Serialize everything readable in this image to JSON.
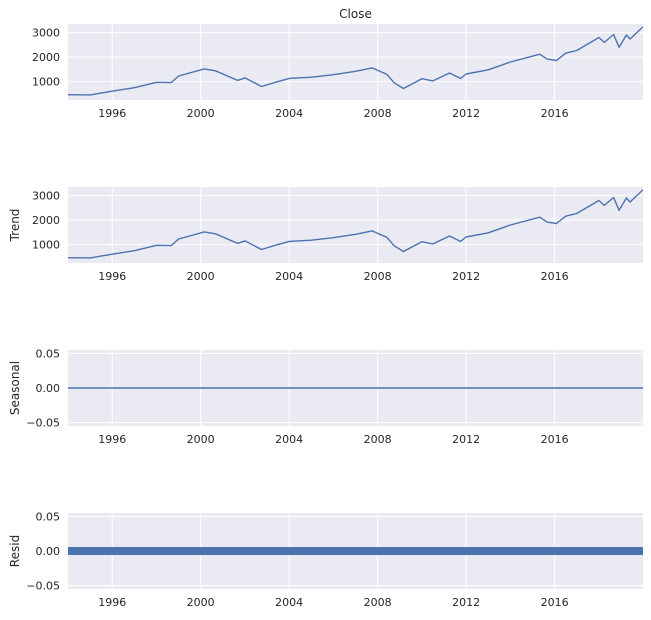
{
  "chart_data": [
    {
      "type": "line",
      "title": "Close",
      "ylabel": "",
      "xlabel": "",
      "x_range": [
        "1994-01-01",
        "2019-12-31"
      ],
      "ylim": [
        250,
        3350
      ],
      "yticks": [
        1000,
        2000,
        3000
      ],
      "ytick_labels": [
        "1000",
        "2000",
        "3000"
      ],
      "xticks": [
        "1996-01-01",
        "2000-01-01",
        "2004-01-01",
        "2008-01-01",
        "2012-01-01",
        "2016-01-01"
      ],
      "xtick_labels": [
        "1996",
        "2000",
        "2004",
        "2008",
        "2012",
        "2016"
      ],
      "grid": true,
      "line_color": "#4c72b0",
      "points": [
        [
          "1994-01-01",
          466
        ],
        [
          "1995-01-01",
          460
        ],
        [
          "1996-01-01",
          610
        ],
        [
          "1997-01-01",
          750
        ],
        [
          "1998-01-01",
          970
        ],
        [
          "1998-09-01",
          960
        ],
        [
          "1999-01-01",
          1230
        ],
        [
          "2000-03-01",
          1520
        ],
        [
          "2000-09-01",
          1440
        ],
        [
          "2001-09-01",
          1050
        ],
        [
          "2002-01-01",
          1150
        ],
        [
          "2002-10-01",
          800
        ],
        [
          "2003-06-01",
          980
        ],
        [
          "2004-01-01",
          1130
        ],
        [
          "2005-01-01",
          1180
        ],
        [
          "2006-01-01",
          1280
        ],
        [
          "2007-01-01",
          1420
        ],
        [
          "2007-10-01",
          1560
        ],
        [
          "2008-06-01",
          1300
        ],
        [
          "2008-10-01",
          950
        ],
        [
          "2009-03-01",
          720
        ],
        [
          "2010-01-01",
          1120
        ],
        [
          "2010-07-01",
          1030
        ],
        [
          "2011-04-01",
          1350
        ],
        [
          "2011-10-01",
          1130
        ],
        [
          "2012-01-01",
          1310
        ],
        [
          "2013-01-01",
          1480
        ],
        [
          "2014-01-01",
          1800
        ],
        [
          "2015-05-01",
          2120
        ],
        [
          "2015-09-01",
          1920
        ],
        [
          "2016-02-01",
          1860
        ],
        [
          "2016-07-01",
          2160
        ],
        [
          "2017-01-01",
          2270
        ],
        [
          "2018-01-01",
          2800
        ],
        [
          "2018-04-01",
          2600
        ],
        [
          "2018-09-01",
          2920
        ],
        [
          "2018-12-01",
          2400
        ],
        [
          "2019-04-01",
          2900
        ],
        [
          "2019-06-01",
          2740
        ],
        [
          "2019-12-31",
          3240
        ]
      ]
    },
    {
      "type": "line",
      "title": "",
      "ylabel": "Trend",
      "xlabel": "",
      "x_range": [
        "1994-01-01",
        "2019-12-31"
      ],
      "ylim": [
        250,
        3350
      ],
      "yticks": [
        1000,
        2000,
        3000
      ],
      "ytick_labels": [
        "1000",
        "2000",
        "3000"
      ],
      "xticks": [
        "1996-01-01",
        "2000-01-01",
        "2004-01-01",
        "2008-01-01",
        "2012-01-01",
        "2016-01-01"
      ],
      "xtick_labels": [
        "1996",
        "2000",
        "2004",
        "2008",
        "2012",
        "2016"
      ],
      "grid": true,
      "line_color": "#4c72b0",
      "points": [
        [
          "1994-01-01",
          466
        ],
        [
          "1995-01-01",
          460
        ],
        [
          "1996-01-01",
          610
        ],
        [
          "1997-01-01",
          750
        ],
        [
          "1998-01-01",
          970
        ],
        [
          "1998-09-01",
          960
        ],
        [
          "1999-01-01",
          1230
        ],
        [
          "2000-03-01",
          1520
        ],
        [
          "2000-09-01",
          1440
        ],
        [
          "2001-09-01",
          1050
        ],
        [
          "2002-01-01",
          1150
        ],
        [
          "2002-10-01",
          800
        ],
        [
          "2003-06-01",
          980
        ],
        [
          "2004-01-01",
          1130
        ],
        [
          "2005-01-01",
          1180
        ],
        [
          "2006-01-01",
          1280
        ],
        [
          "2007-01-01",
          1420
        ],
        [
          "2007-10-01",
          1560
        ],
        [
          "2008-06-01",
          1300
        ],
        [
          "2008-10-01",
          950
        ],
        [
          "2009-03-01",
          720
        ],
        [
          "2010-01-01",
          1120
        ],
        [
          "2010-07-01",
          1030
        ],
        [
          "2011-04-01",
          1350
        ],
        [
          "2011-10-01",
          1130
        ],
        [
          "2012-01-01",
          1310
        ],
        [
          "2013-01-01",
          1480
        ],
        [
          "2014-01-01",
          1800
        ],
        [
          "2015-05-01",
          2120
        ],
        [
          "2015-09-01",
          1920
        ],
        [
          "2016-02-01",
          1860
        ],
        [
          "2016-07-01",
          2160
        ],
        [
          "2017-01-01",
          2270
        ],
        [
          "2018-01-01",
          2800
        ],
        [
          "2018-04-01",
          2600
        ],
        [
          "2018-09-01",
          2920
        ],
        [
          "2018-12-01",
          2400
        ],
        [
          "2019-04-01",
          2900
        ],
        [
          "2019-06-01",
          2740
        ],
        [
          "2019-12-31",
          3240
        ]
      ]
    },
    {
      "type": "line",
      "title": "",
      "ylabel": "Seasonal",
      "xlabel": "",
      "x_range": [
        "1994-01-01",
        "2019-12-31"
      ],
      "ylim": [
        -0.055,
        0.055
      ],
      "yticks": [
        -0.05,
        0,
        0.05
      ],
      "ytick_labels": [
        "−0.05",
        "0.00",
        "0.05"
      ],
      "xticks": [
        "1996-01-01",
        "2000-01-01",
        "2004-01-01",
        "2008-01-01",
        "2012-01-01",
        "2016-01-01"
      ],
      "xtick_labels": [
        "1996",
        "2000",
        "2004",
        "2008",
        "2012",
        "2016"
      ],
      "grid": true,
      "line_color": "#4c72b0",
      "points": [
        [
          "1994-01-01",
          0
        ],
        [
          "2019-12-31",
          0
        ]
      ]
    },
    {
      "type": "scatter",
      "title": "",
      "ylabel": "Resid",
      "xlabel": "",
      "x_range": [
        "1994-01-01",
        "2019-12-31"
      ],
      "ylim": [
        -0.055,
        0.055
      ],
      "yticks": [
        -0.05,
        0,
        0.05
      ],
      "ytick_labels": [
        "−0.05",
        "0.00",
        "0.05"
      ],
      "xticks": [
        "1996-01-01",
        "2000-01-01",
        "2004-01-01",
        "2008-01-01",
        "2012-01-01",
        "2016-01-01"
      ],
      "xtick_labels": [
        "1996",
        "2000",
        "2004",
        "2008",
        "2012",
        "2016"
      ],
      "grid": true,
      "line_color": "#4c72b0",
      "points": [
        [
          "1994-01-01",
          0
        ],
        [
          "2019-12-31",
          0
        ]
      ]
    }
  ]
}
